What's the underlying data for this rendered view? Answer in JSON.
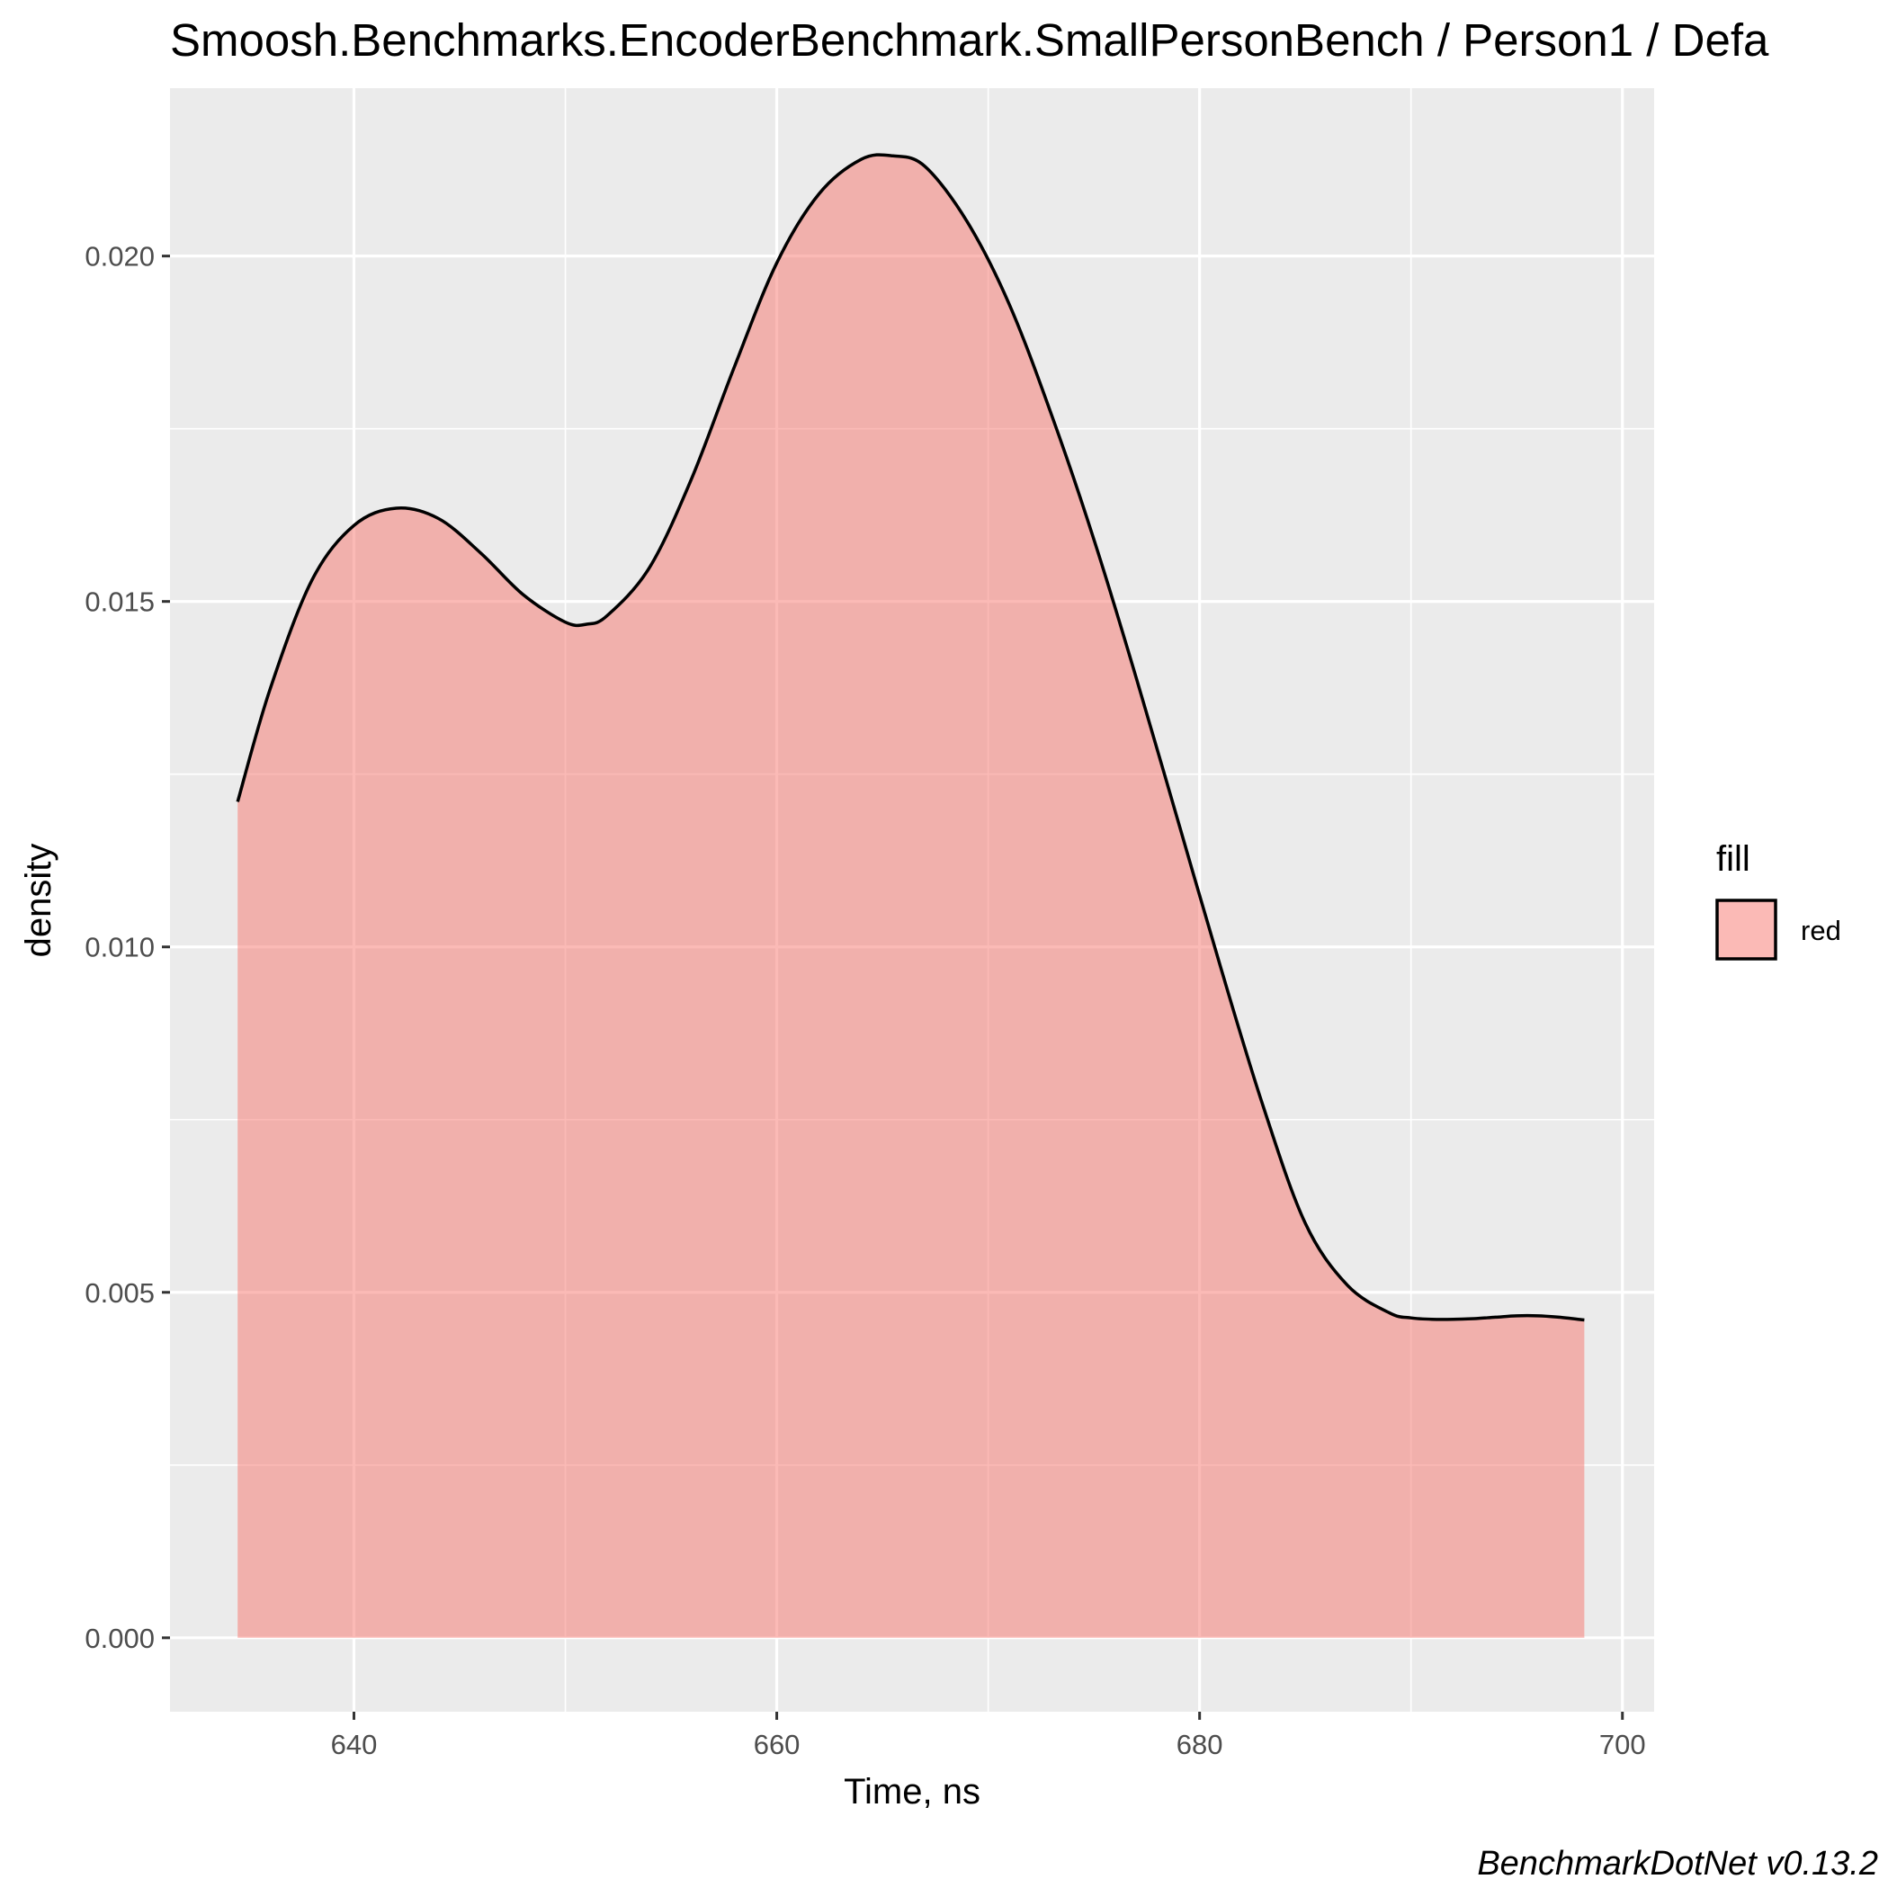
{
  "chart_data": {
    "type": "area",
    "title": "Smoosh.Benchmarks.EncoderBenchmark.SmallPersonBench / Person1 / Defa",
    "xlabel": "Time, ns",
    "ylabel": "density",
    "caption": "BenchmarkDotNet v0.13.2",
    "xlim": [
      631.3,
      701.5
    ],
    "ylim": [
      -0.00107,
      0.02243
    ],
    "x_ticks": [
      640,
      660,
      680,
      700
    ],
    "x_tick_labels": [
      "640",
      "660",
      "680",
      "700"
    ],
    "y_ticks": [
      0.0,
      0.005,
      0.01,
      0.015,
      0.02
    ],
    "y_tick_labels": [
      "0.000",
      "0.005",
      "0.010",
      "0.015",
      "0.020"
    ],
    "grid": true,
    "legend": {
      "title": "fill",
      "position": "right",
      "entries": [
        {
          "label": "red",
          "color": "#F8766D"
        }
      ]
    },
    "series": [
      {
        "name": "red",
        "fill_color": "#F8766D",
        "fill_opacity": 0.5,
        "line_color": "#000000",
        "x": [
          634.5,
          636,
          638,
          640,
          642,
          644,
          646,
          648,
          650,
          651,
          652,
          654,
          656,
          658,
          660,
          662,
          664,
          665.5,
          667,
          669,
          671,
          673,
          675,
          677,
          679,
          681,
          683,
          685,
          687,
          689,
          690,
          691,
          692,
          693,
          694,
          695,
          696,
          697,
          698.2
        ],
        "y": [
          0.0121,
          0.0137,
          0.0153,
          0.0161,
          0.01635,
          0.0162,
          0.0157,
          0.0151,
          0.0147,
          0.01467,
          0.0148,
          0.0155,
          0.0168,
          0.0184,
          0.0199,
          0.0209,
          0.0214,
          0.02145,
          0.0213,
          0.0205,
          0.0193,
          0.0177,
          0.0159,
          0.0139,
          0.0118,
          0.0097,
          0.0077,
          0.006,
          0.0051,
          0.0047,
          0.00463,
          0.00461,
          0.00461,
          0.00462,
          0.00464,
          0.00466,
          0.00466,
          0.00464,
          0.0046
        ]
      }
    ]
  }
}
